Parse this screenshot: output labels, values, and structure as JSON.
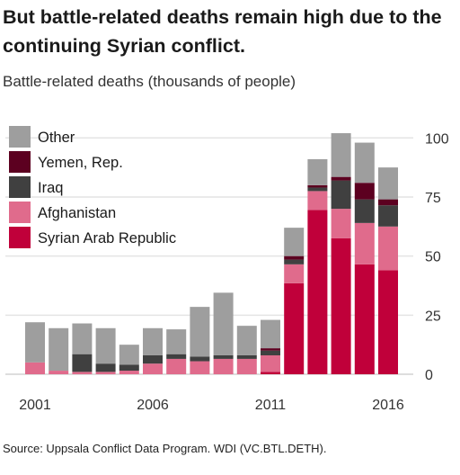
{
  "title": "But battle-related deaths remain high due to the continuing Syrian conflict.",
  "subtitle": "Battle-related deaths (thousands of people)",
  "source": "Source: Uppsala Conflict Data Program. WDI (VC.BTL.DETH).",
  "chart_data": {
    "type": "bar",
    "stacked": true,
    "years": [
      2001,
      2002,
      2003,
      2004,
      2005,
      2006,
      2007,
      2008,
      2009,
      2010,
      2011,
      2012,
      2013,
      2014,
      2015,
      2016
    ],
    "x_tick_labels": [
      "2001",
      "2006",
      "2011",
      "2016"
    ],
    "x_tick_years": [
      2001,
      2006,
      2011,
      2016
    ],
    "y_ticks": [
      0,
      25,
      50,
      75,
      100
    ],
    "ylim": [
      0,
      104
    ],
    "grid": true,
    "legend_position": "top-left",
    "series": [
      {
        "name": "Syrian Arab Republic",
        "color": "#c0003a",
        "values": [
          0,
          0,
          0,
          0,
          0,
          0,
          0,
          0,
          0,
          0,
          1,
          38.5,
          69.5,
          57.5,
          46.5,
          44
        ]
      },
      {
        "name": "Afghanistan",
        "color": "#e06b8c",
        "values": [
          5,
          1.5,
          1,
          1,
          1.5,
          4.5,
          6.5,
          5.5,
          6.5,
          6.5,
          7,
          8,
          8,
          12.5,
          17.5,
          18.5
        ]
      },
      {
        "name": "Iraq",
        "color": "#404040",
        "values": [
          0,
          0,
          7.5,
          3.5,
          2.5,
          3.5,
          2,
          2,
          1.5,
          1.5,
          2,
          2,
          1.5,
          12,
          10,
          9
        ]
      },
      {
        "name": "Yemen, Rep.",
        "color": "#5c0020",
        "values": [
          0,
          0,
          0,
          0,
          0,
          0,
          0,
          0,
          0,
          0,
          1,
          1.5,
          1,
          1.5,
          7,
          2.5
        ]
      },
      {
        "name": "Other",
        "color": "#9e9e9e",
        "values": [
          17,
          18,
          13,
          15,
          8.5,
          11.5,
          10.5,
          21,
          26.5,
          12.5,
          12,
          12,
          11,
          18.5,
          17,
          13.5
        ]
      }
    ]
  }
}
